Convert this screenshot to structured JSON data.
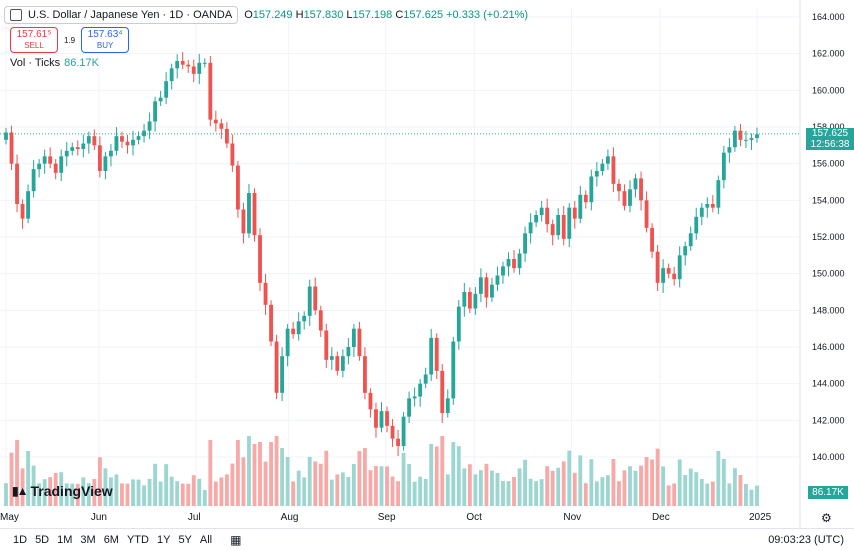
{
  "header": {
    "symbol_title": "U.S. Dollar / Japanese Yen · 1D · OANDA",
    "ohlc_open_label": "O",
    "ohlc_open": "157.249",
    "ohlc_high_label": "H",
    "ohlc_high": "157.830",
    "ohlc_low_label": "L",
    "ohlc_low": "157.198",
    "ohlc_close_label": "C",
    "ohlc_close": "157.625",
    "ohlc_change": "+0.333 (+0.21%)"
  },
  "trade": {
    "sell_price": "157.61⁵",
    "sell_label": "SELL",
    "spread": "1.9",
    "buy_price": "157.63⁴",
    "buy_label": "BUY"
  },
  "volume": {
    "label": "Vol · Ticks",
    "value": "86.17K"
  },
  "price_tag": {
    "price": "157.625",
    "countdown": "12:56:38"
  },
  "brand": "TradingView",
  "bottom_bar": {
    "ranges": [
      "1D",
      "5D",
      "1M",
      "3M",
      "6M",
      "YTD",
      "1Y",
      "5Y",
      "All"
    ],
    "clock": "09:03:23 (UTC)"
  },
  "colors": {
    "up": "#26a69a",
    "down": "#ef5350",
    "vol_up": "#9bd6d1",
    "vol_down": "#f7a9a7",
    "grid": "#f0f3fa"
  },
  "chart_data": {
    "type": "candlestick",
    "title": "U.S. Dollar / Japanese Yen · 1D · OANDA",
    "y_axis_ticks": [
      "164.000",
      "162.000",
      "160.000",
      "158.000",
      "156.000",
      "154.000",
      "152.000",
      "150.000",
      "148.000",
      "146.000",
      "144.000",
      "142.000",
      "140.000"
    ],
    "ylim": [
      138,
      164
    ],
    "x_axis_ticks": [
      "May",
      "Jun",
      "Jul",
      "Aug",
      "Sep",
      "Oct",
      "Nov",
      "Dec",
      "2025"
    ],
    "last_price": 157.625,
    "closes": [
      157.7,
      156.0,
      153.8,
      153.0,
      154.5,
      155.7,
      156.0,
      156.4,
      156.0,
      155.5,
      156.4,
      156.7,
      156.9,
      156.8,
      157.1,
      157.5,
      157.0,
      155.6,
      156.4,
      156.7,
      157.5,
      157.2,
      157.0,
      157.3,
      157.5,
      157.8,
      158.3,
      159.4,
      159.6,
      160.5,
      161.2,
      161.6,
      161.4,
      161.3,
      160.9,
      161.5,
      161.5,
      158.4,
      158.2,
      157.9,
      157.1,
      155.9,
      153.5,
      152.2,
      154.4,
      152.1,
      149.5,
      148.3,
      146.3,
      143.5,
      145.5,
      147.0,
      146.7,
      147.4,
      147.7,
      149.3,
      148.0,
      146.9,
      145.3,
      145.5,
      144.7,
      145.5,
      146.0,
      147.0,
      145.5,
      143.5,
      142.6,
      141.6,
      142.5,
      141.7,
      141.0,
      140.6,
      142.2,
      143.2,
      143.3,
      144.0,
      144.5,
      146.5,
      144.7,
      142.4,
      143.2,
      146.3,
      148.2,
      149.0,
      148.1,
      148.9,
      149.8,
      148.7,
      149.4,
      149.9,
      150.4,
      150.8,
      150.3,
      151.1,
      152.2,
      152.8,
      153.2,
      153.6,
      152.7,
      152.1,
      153.2,
      151.9,
      153.6,
      153.0,
      154.3,
      153.9,
      155.3,
      155.6,
      156.0,
      156.4,
      154.9,
      154.5,
      153.7,
      154.6,
      155.2,
      154.0,
      152.5,
      151.2,
      149.5,
      150.3,
      150.0,
      149.7,
      151.0,
      151.5,
      152.2,
      153.1,
      153.6,
      153.8,
      153.6,
      155.1,
      156.6,
      156.9,
      157.8,
      157.3,
      157.3,
      157.4,
      157.6
    ]
  }
}
